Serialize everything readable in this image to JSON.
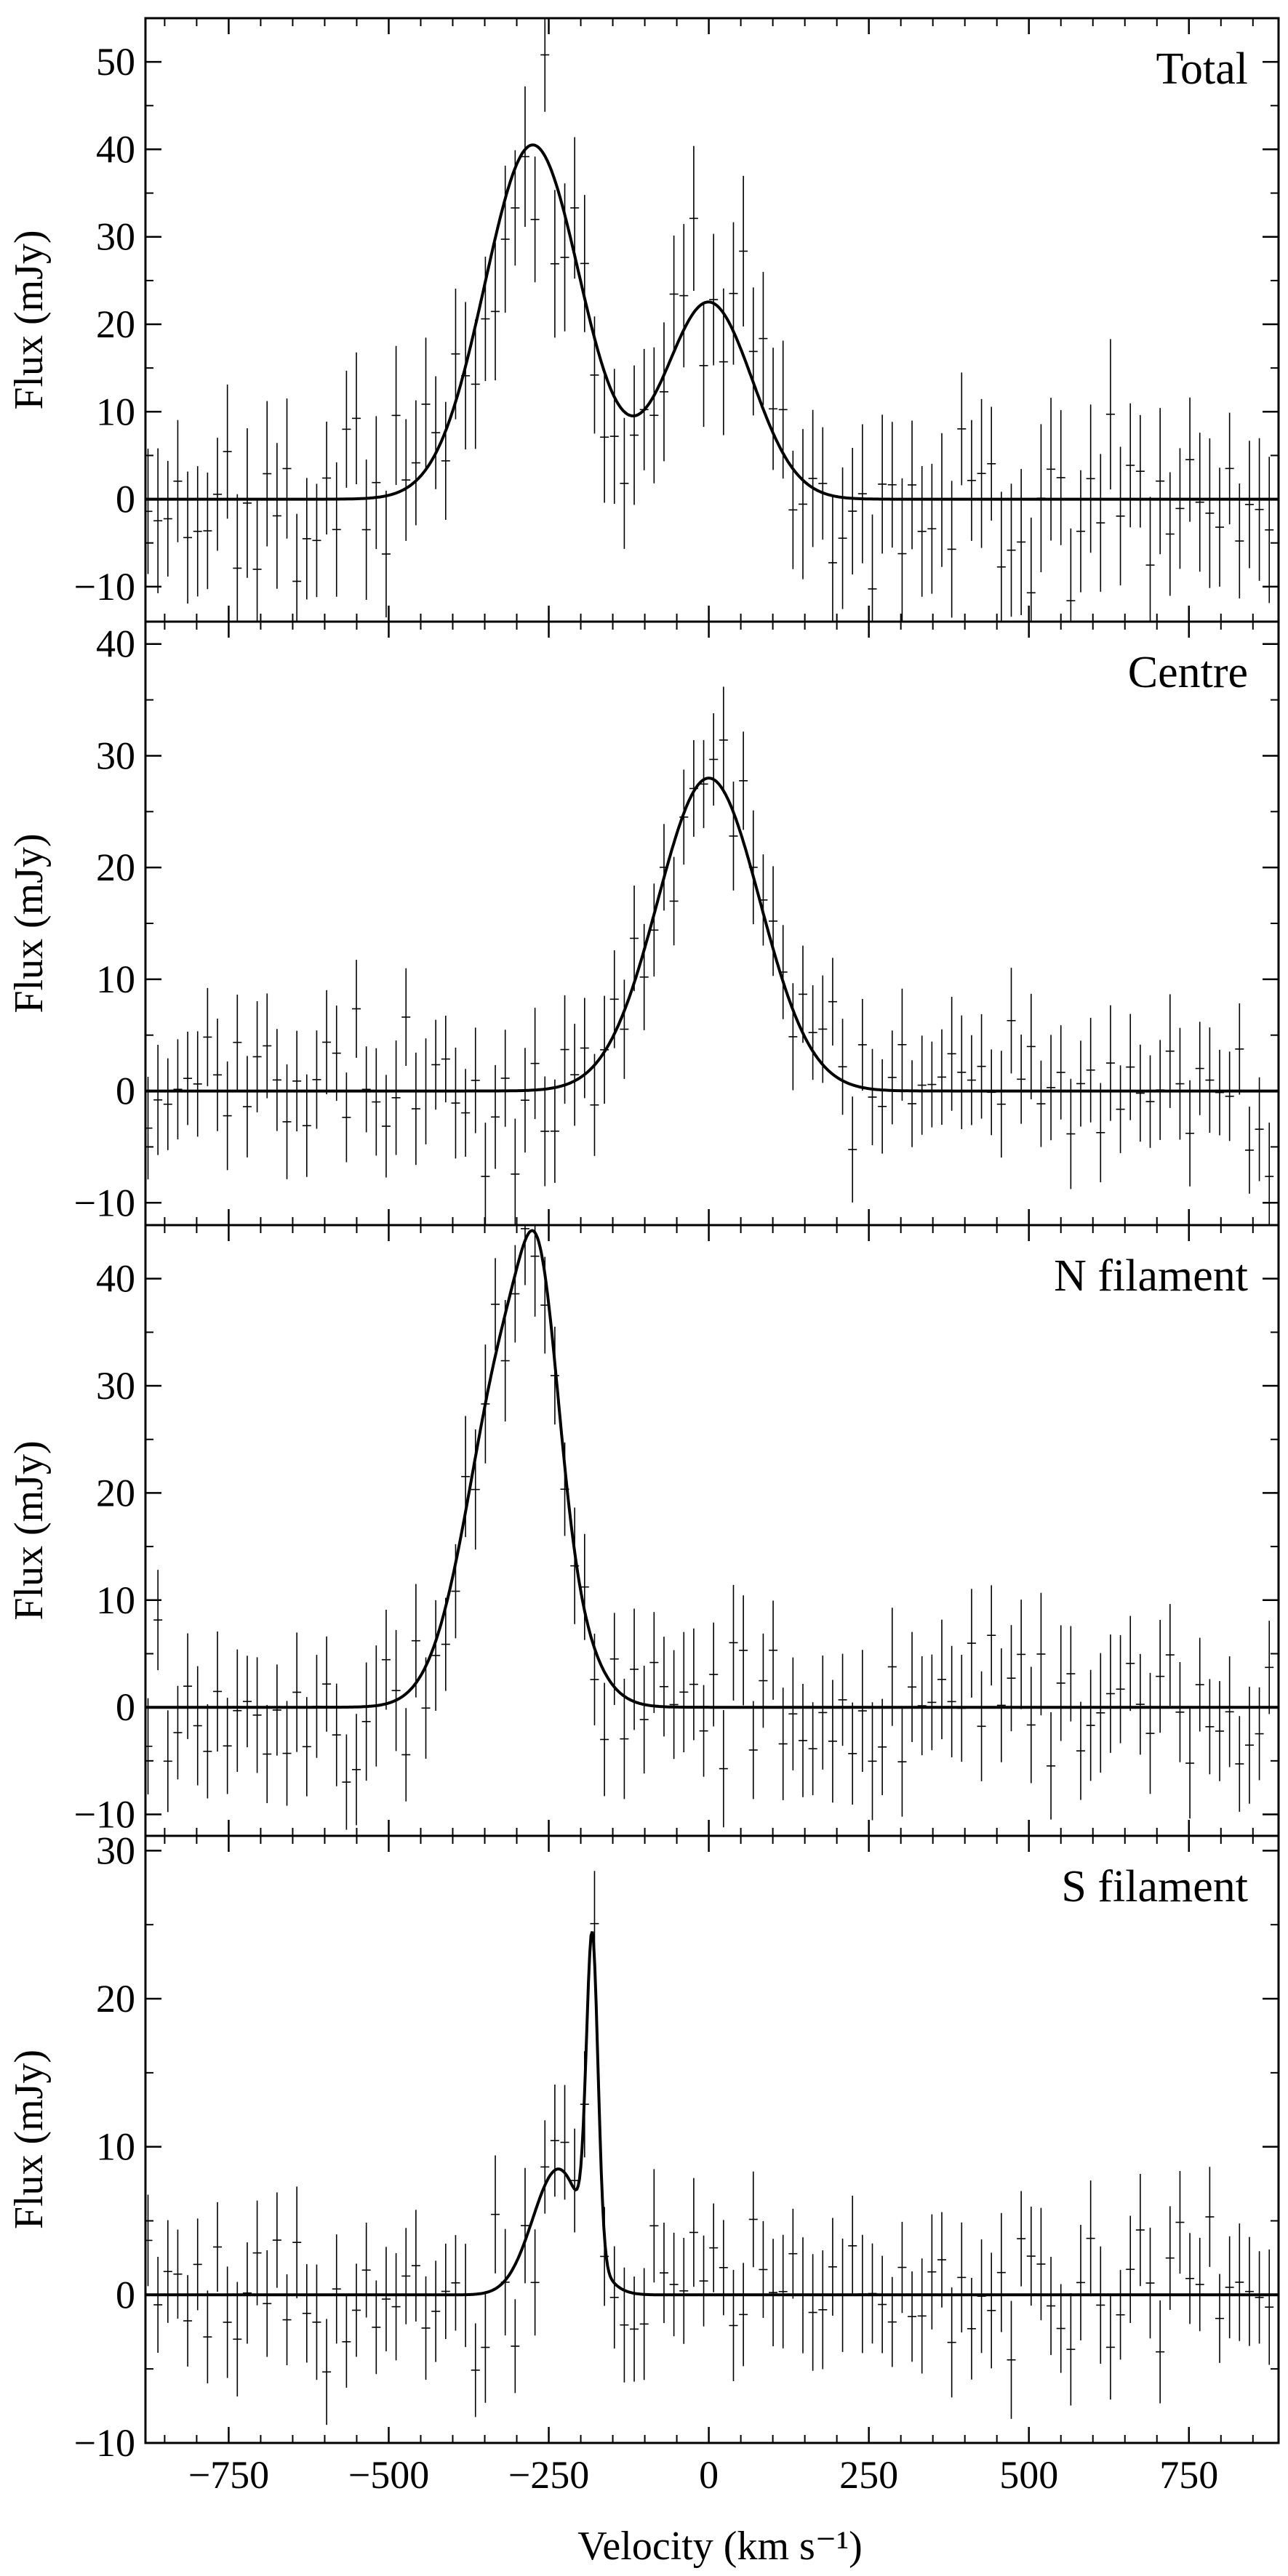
{
  "chart_data": [
    {
      "type": "line",
      "panel_label": "Total",
      "xlabel": "",
      "ylabel": "Flux (mJy)",
      "xlim": [
        -880,
        890
      ],
      "ylim": [
        -14,
        55
      ],
      "yticks": [
        -10,
        0,
        10,
        20,
        30,
        40,
        50
      ],
      "xticks": [
        -750,
        -500,
        -250,
        0,
        250,
        500,
        750
      ],
      "model": {
        "components": [
          {
            "amplitude": 40.5,
            "center": -275,
            "sigma": 75
          },
          {
            "amplitude": 22.5,
            "center": 0,
            "sigma": 68
          }
        ]
      },
      "data_points": {
        "step_kms": 15.5,
        "error_mjy": 7.5,
        "noise_mjy": 5.0,
        "seed": 11
      }
    },
    {
      "type": "line",
      "panel_label": "Centre",
      "xlabel": "",
      "ylabel": "Flux (mJy)",
      "xlim": [
        -880,
        890
      ],
      "ylim": [
        -12,
        42
      ],
      "yticks": [
        -10,
        0,
        10,
        20,
        30,
        40
      ],
      "xticks": [
        -750,
        -500,
        -250,
        0,
        250,
        500,
        750
      ],
      "model": {
        "components": [
          {
            "amplitude": 28,
            "center": 0,
            "sigma": 80
          }
        ]
      },
      "data_points": {
        "step_kms": 15.5,
        "error_mjy": 4.5,
        "noise_mjy": 3.0,
        "seed": 23
      }
    },
    {
      "type": "line",
      "panel_label": "N filament",
      "xlabel": "",
      "ylabel": "Flux (mJy)",
      "xlim": [
        -880,
        890
      ],
      "ylim": [
        -12,
        45
      ],
      "yticks": [
        -10,
        0,
        10,
        20,
        30,
        40
      ],
      "xticks": [
        -750,
        -500,
        -250,
        0,
        250,
        500,
        750
      ],
      "model": {
        "components": [
          {
            "amplitude": 35.5,
            "center": -305,
            "sigma": 65
          },
          {
            "amplitude": 14,
            "center": -262,
            "sigma": 28
          }
        ]
      },
      "data_points": {
        "step_kms": 15.5,
        "error_mjy": 5.0,
        "noise_mjy": 3.3,
        "seed": 37
      }
    },
    {
      "type": "line",
      "panel_label": "S filament",
      "xlabel": "Velocity (km s⁻¹)",
      "ylabel": "Flux (mJy)",
      "xlim": [
        -880,
        890
      ],
      "ylim": [
        -10,
        31
      ],
      "yticks": [
        -10,
        0,
        10,
        20,
        30
      ],
      "xticks": [
        -750,
        -500,
        -250,
        0,
        250,
        500,
        750
      ],
      "xticklabels": [
        "−750",
        "−500",
        "−250",
        "0",
        "250",
        "500",
        "750"
      ],
      "model": {
        "components": [
          {
            "amplitude": 8.5,
            "center": -235,
            "sigma": 40
          },
          {
            "amplitude": 21,
            "center": -182,
            "sigma": 9
          }
        ]
      },
      "data_points": {
        "step_kms": 15.5,
        "error_mjy": 3.5,
        "noise_mjy": 2.6,
        "seed": 53
      }
    }
  ]
}
